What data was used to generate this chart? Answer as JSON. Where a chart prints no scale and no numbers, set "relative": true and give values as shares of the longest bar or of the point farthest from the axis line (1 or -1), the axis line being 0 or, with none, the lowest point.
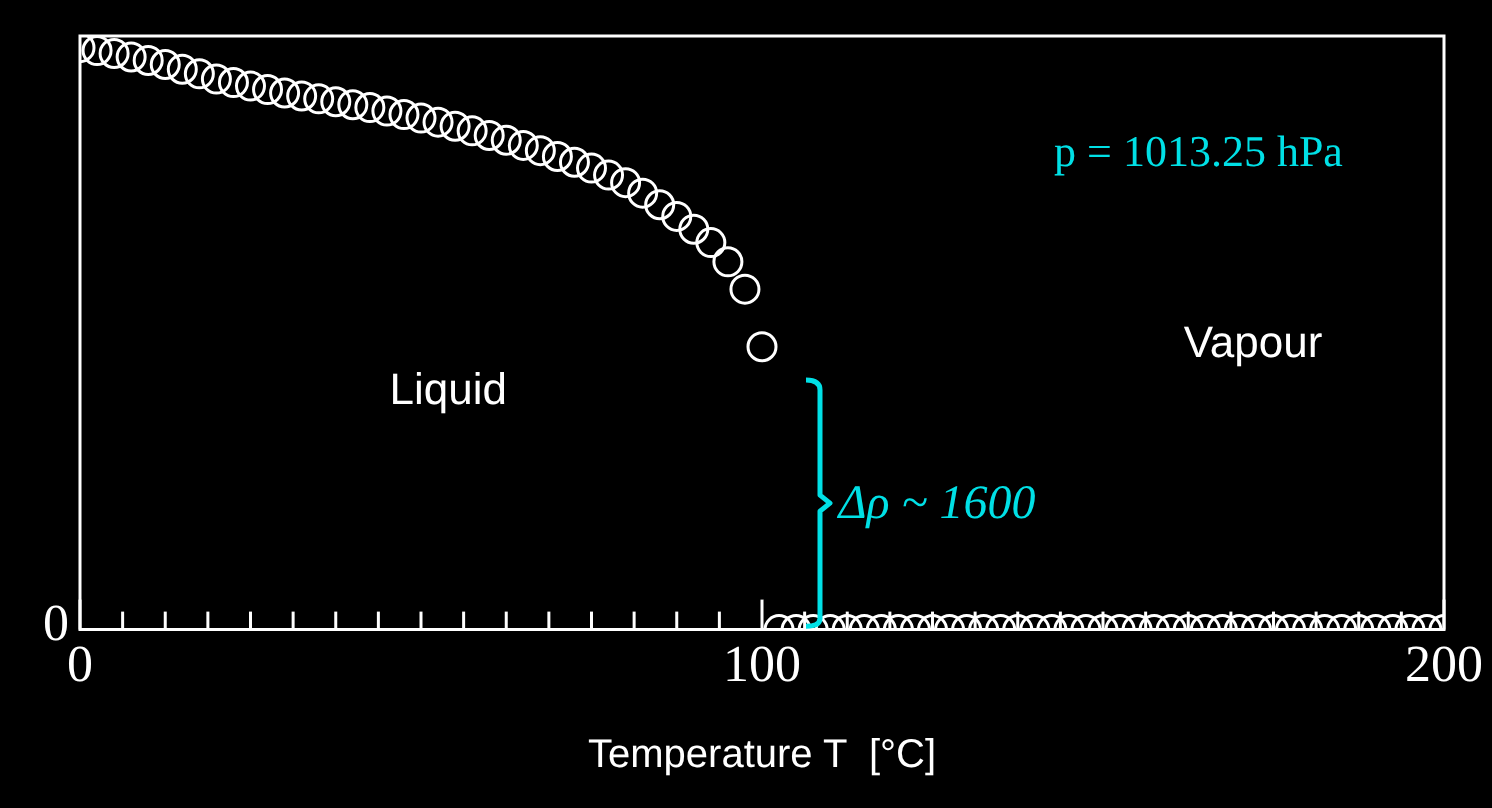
{
  "chart_data": {
    "type": "scatter",
    "relative": true,
    "xlabel": "Temperature T  [°C]",
    "marker": "circle",
    "grid": false,
    "legend": false,
    "xlim": [
      0,
      200
    ],
    "xticks": [
      0,
      {
        "value": 6.25,
        "label": null
      },
      {
        "value": 12.5,
        "label": null
      },
      {
        "value": 18.75,
        "label": null
      },
      {
        "value": 25,
        "label": null
      },
      {
        "value": 31.25,
        "label": null
      },
      {
        "value": 37.5,
        "label": null
      },
      {
        "value": 43.75,
        "label": null
      },
      {
        "value": 50,
        "label": null
      },
      {
        "value": 56.25,
        "label": null
      },
      {
        "value": 62.5,
        "label": null
      },
      {
        "value": 68.75,
        "label": null
      },
      {
        "value": 75,
        "label": null
      },
      {
        "value": 81.25,
        "label": null
      },
      {
        "value": 87.5,
        "label": null
      },
      {
        "value": 93.75,
        "label": null
      },
      100,
      {
        "value": 106.25,
        "label": null
      },
      {
        "value": 112.5,
        "label": null
      },
      {
        "value": 118.75,
        "label": null
      },
      {
        "value": 125,
        "label": null
      },
      {
        "value": 131.25,
        "label": null
      },
      {
        "value": 137.5,
        "label": null
      },
      {
        "value": 143.75,
        "label": null
      },
      {
        "value": 150,
        "label": null
      },
      {
        "value": 156.25,
        "label": null
      },
      {
        "value": 162.5,
        "label": null
      },
      {
        "value": 168.75,
        "label": null
      },
      {
        "value": 175,
        "label": null
      },
      {
        "value": 181.25,
        "label": null
      },
      {
        "value": 187.5,
        "label": null
      },
      {
        "value": 193.75,
        "label": null
      },
      200
    ],
    "series": [
      {
        "color": "#ffffff",
        "x": [
          0,
          2.5,
          5,
          7.5,
          10,
          12.5,
          15,
          17.5,
          20,
          22.5,
          25,
          27.5,
          30,
          32.5,
          35,
          37.5,
          40,
          42.5,
          45,
          47.5,
          50,
          52.5,
          55,
          57.5,
          60,
          62.5,
          65,
          67.5,
          70,
          72.5,
          75,
          77.5,
          80,
          82.5,
          85,
          87.5,
          90,
          92.5,
          95,
          97.5,
          100
        ],
        "values": [
          1.0,
          0.995,
          0.99,
          0.984,
          0.978,
          0.971,
          0.963,
          0.955,
          0.946,
          0.94,
          0.934,
          0.928,
          0.922,
          0.917,
          0.912,
          0.907,
          0.902,
          0.897,
          0.891,
          0.885,
          0.879,
          0.872,
          0.865,
          0.857,
          0.849,
          0.841,
          0.832,
          0.823,
          0.813,
          0.803,
          0.793,
          0.781,
          0.768,
          0.75,
          0.73,
          0.71,
          0.688,
          0.665,
          0.632,
          0.585,
          0.486
        ]
      },
      {
        "color": "#ffffff",
        "x": [
          102.5,
          105,
          107.5,
          110,
          112.5,
          115,
          117.5,
          120,
          122.5,
          125,
          127.5,
          130,
          132.5,
          135,
          137.5,
          140,
          142.5,
          145,
          147.5,
          150,
          152.5,
          155,
          157.5,
          160,
          162.5,
          165,
          167.5,
          170,
          172.5,
          175,
          177.5,
          180,
          182.5,
          185,
          187.5,
          190,
          192.5,
          195,
          197.5,
          200
        ],
        "values": [
          0,
          0,
          0,
          0,
          0,
          0,
          0,
          0,
          0,
          0,
          0,
          0,
          0,
          0,
          0,
          0,
          0,
          0,
          0,
          0,
          0,
          0,
          0,
          0,
          0,
          0,
          0,
          0,
          0,
          0,
          0,
          0,
          0,
          0,
          0,
          0,
          0,
          0,
          0,
          0
        ]
      }
    ],
    "annotations": [
      "p = 1013.25 hPa",
      "Liquid",
      "Vapour",
      "Δρ ~ 1600",
      "0"
    ]
  }
}
